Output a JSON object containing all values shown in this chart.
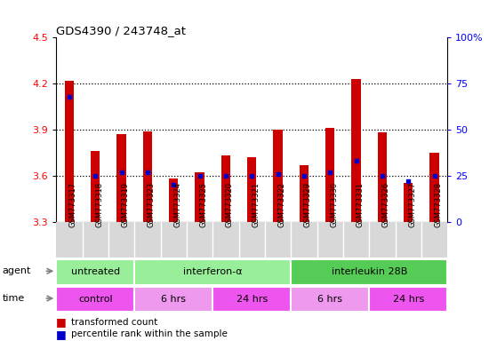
{
  "title": "GDS4390 / 243748_at",
  "samples": [
    "GSM773317",
    "GSM773318",
    "GSM773319",
    "GSM773323",
    "GSM773324",
    "GSM773325",
    "GSM773320",
    "GSM773321",
    "GSM773322",
    "GSM773329",
    "GSM773330",
    "GSM773331",
    "GSM773326",
    "GSM773327",
    "GSM773328"
  ],
  "red_values": [
    4.22,
    3.76,
    3.87,
    3.89,
    3.58,
    3.62,
    3.73,
    3.72,
    3.9,
    3.67,
    3.91,
    4.23,
    3.88,
    3.55,
    3.75
  ],
  "blue_percentiles": [
    68,
    25,
    27,
    27,
    20,
    25,
    25,
    25,
    26,
    25,
    27,
    33,
    25,
    22,
    25
  ],
  "ylim_left": [
    3.3,
    4.5
  ],
  "ylim_right": [
    0,
    100
  ],
  "yticks_left": [
    3.3,
    3.6,
    3.9,
    4.2,
    4.5
  ],
  "yticks_right": [
    0,
    25,
    50,
    75,
    100
  ],
  "ytick_labels_left": [
    "3.3",
    "3.6",
    "3.9",
    "4.2",
    "4.5"
  ],
  "ytick_labels_right": [
    "0",
    "25",
    "50",
    "75",
    "100%"
  ],
  "dotted_lines": [
    3.6,
    3.9,
    4.2
  ],
  "bar_color": "#CC0000",
  "dot_color": "#0000CC",
  "bar_width": 0.35,
  "baseline": 3.3,
  "agent_groups": [
    {
      "label": "untreated",
      "xstart": 0,
      "xend": 2,
      "color": "#99EE99"
    },
    {
      "label": "interferon-α",
      "xstart": 3,
      "xend": 8,
      "color": "#99EE99"
    },
    {
      "label": "interleukin 28B",
      "xstart": 9,
      "xend": 14,
      "color": "#55CC55"
    }
  ],
  "time_groups": [
    {
      "label": "control",
      "xstart": 0,
      "xend": 2,
      "color": "#EE55EE"
    },
    {
      "label": "6 hrs",
      "xstart": 3,
      "xend": 5,
      "color": "#EE99EE"
    },
    {
      "label": "24 hrs",
      "xstart": 6,
      "xend": 8,
      "color": "#EE55EE"
    },
    {
      "label": "6 hrs",
      "xstart": 9,
      "xend": 11,
      "color": "#EE99EE"
    },
    {
      "label": "24 hrs",
      "xstart": 12,
      "xend": 14,
      "color": "#EE55EE"
    }
  ]
}
